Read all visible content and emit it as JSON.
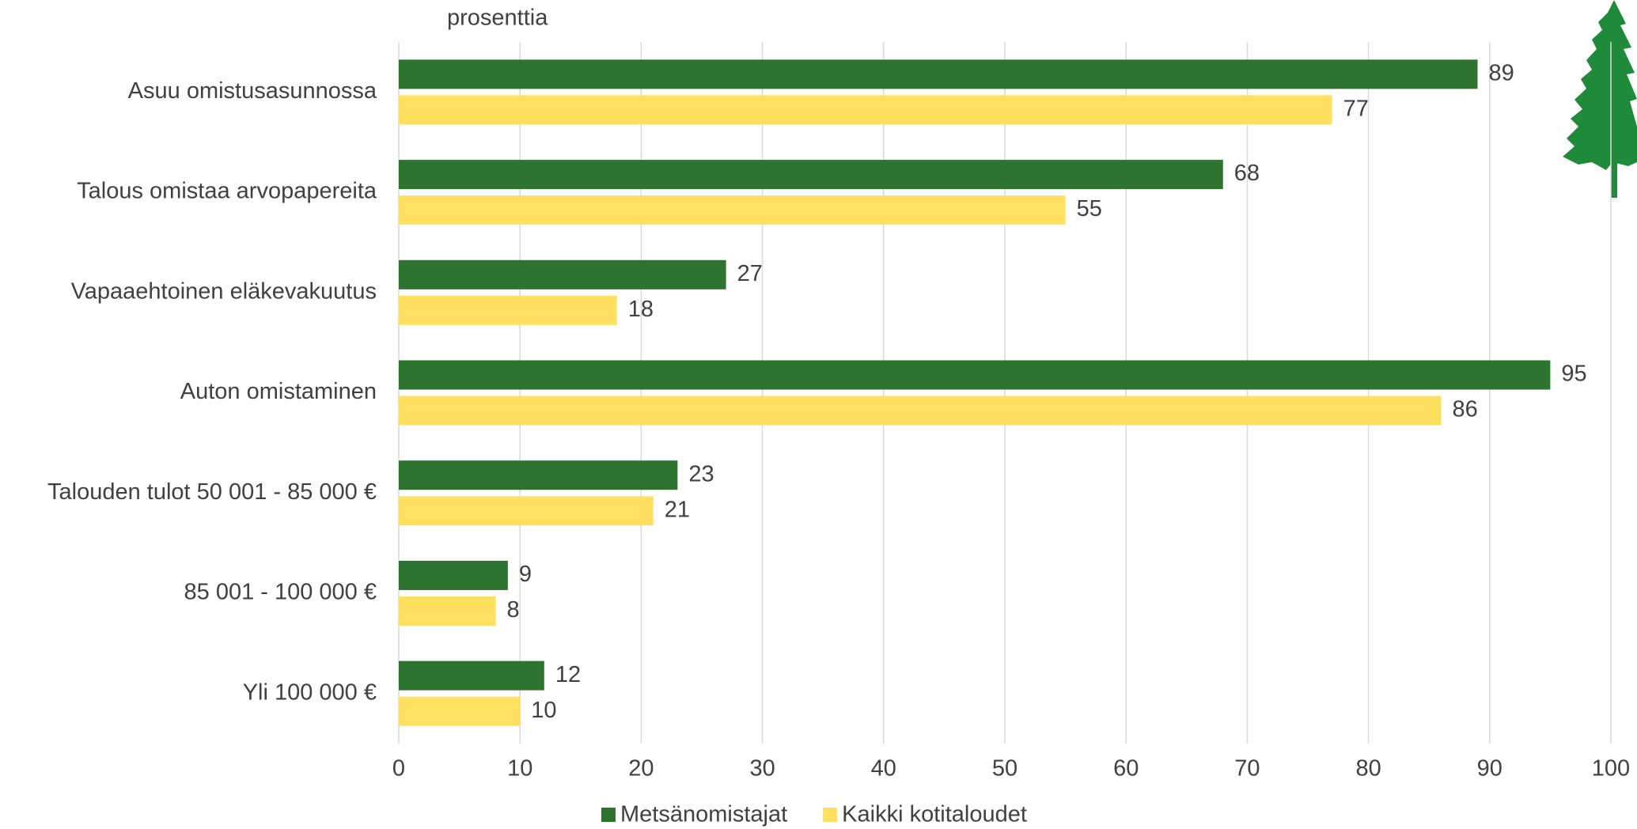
{
  "chart_data": {
    "type": "barh",
    "subtitle": "prosenttia",
    "categories": [
      "Asuu omistusasunnossa",
      "Talous omistaa arvopapereita",
      "Vapaaehtoinen eläkevakuutus",
      "Auton omistaminen",
      "Talouden tulot 50 001 - 85 000 €",
      "85 001 - 100 000 €",
      "Yli 100 000 €"
    ],
    "series": [
      {
        "name": "Metsänomistajat",
        "color": "#2e7330",
        "values": [
          89,
          68,
          27,
          95,
          23,
          9,
          12
        ]
      },
      {
        "name": "Kaikki kotitaloudet",
        "color": "#ffe060",
        "values": [
          77,
          55,
          18,
          86,
          21,
          8,
          10
        ]
      }
    ],
    "xlim": [
      0,
      100
    ],
    "xticks": [
      0,
      10,
      20,
      30,
      40,
      50,
      60,
      70,
      80,
      90,
      100
    ],
    "grid": true,
    "legend": "bottom"
  }
}
